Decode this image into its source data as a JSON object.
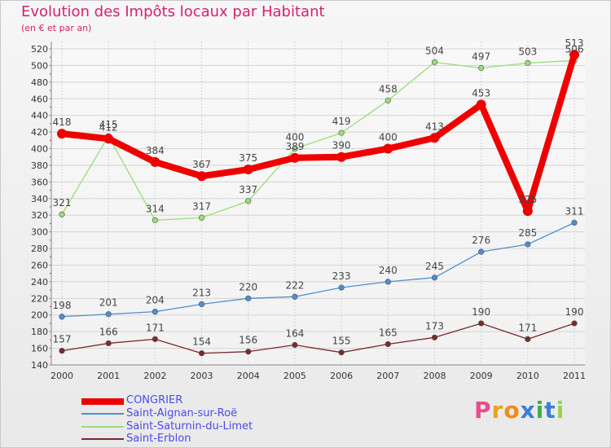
{
  "title": "Evolution des Impôts locaux par Habitant",
  "subtitle": "(en € et par an)",
  "logo": "Proxiti",
  "chart_data": {
    "type": "line",
    "x": [
      "2000",
      "2001",
      "2002",
      "2003",
      "2004",
      "2005",
      "2006",
      "2007",
      "2008",
      "2009",
      "2010",
      "2011"
    ],
    "ylim": [
      140,
      520
    ],
    "yticks": [
      140,
      160,
      180,
      200,
      220,
      240,
      260,
      280,
      300,
      320,
      340,
      360,
      380,
      400,
      420,
      440,
      460,
      480,
      500,
      520
    ],
    "grid": true,
    "legend_position": "bottom-left",
    "series": [
      {
        "name": "CONGRIER",
        "color": "#ee0000",
        "values": [
          418,
          412,
          384,
          367,
          375,
          389,
          390,
          400,
          413,
          453,
          325,
          513
        ]
      },
      {
        "name": "Saint-Aignan-sur-Roë",
        "color": "#4e8ecf",
        "values": [
          198,
          201,
          204,
          213,
          220,
          222,
          233,
          240,
          245,
          276,
          285,
          311
        ]
      },
      {
        "name": "Saint-Saturnin-du-Limet",
        "color": "#99dd77",
        "values": [
          321,
          415,
          314,
          317,
          337,
          400,
          419,
          458,
          504,
          497,
          503,
          506
        ]
      },
      {
        "name": "Saint-Erblon",
        "color": "#7a2a2a",
        "values": [
          157,
          166,
          171,
          154,
          156,
          164,
          155,
          165,
          173,
          190,
          171,
          190
        ]
      }
    ]
  }
}
